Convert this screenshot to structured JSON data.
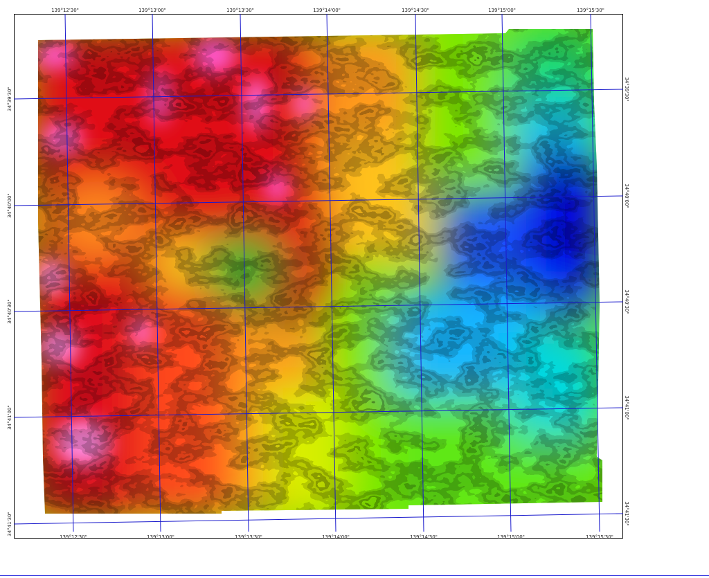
{
  "map": {
    "type": "shaded-relief elevation raster",
    "color_ramp": [
      "#ff5bd6",
      "#c8001a",
      "#ff2a1a",
      "#ff8a1a",
      "#ffc21a",
      "#e8ef00",
      "#7be800",
      "#19d430",
      "#00e4c8",
      "#18b6ff",
      "#1a55ff",
      "#0000e6"
    ],
    "grid_color": "#1a1acc",
    "top_longitudes": [
      "139°12'30\"",
      "139°13'00\"",
      "139°13'30\"",
      "139°14'00\"",
      "139°14'30\"",
      "139°15'00\"",
      "139°15'30\""
    ],
    "bottom_longitudes": [
      "139°12'30\"",
      "139°13'00\"",
      "139°13'30\"",
      "139°14'00\"",
      "139°14'30\"",
      "139°15'00\"",
      "139°15'30\""
    ],
    "right_latitudes": [
      "34°39'30\"",
      "34°40'00\"",
      "34°40'30\"",
      "34°41'00\"",
      "34°41'30\""
    ],
    "left_latitudes": [
      "34°39'30\"",
      "34°40'00\"",
      "34°40'30\"",
      "34°41'00\"",
      "34°41'30\""
    ]
  }
}
